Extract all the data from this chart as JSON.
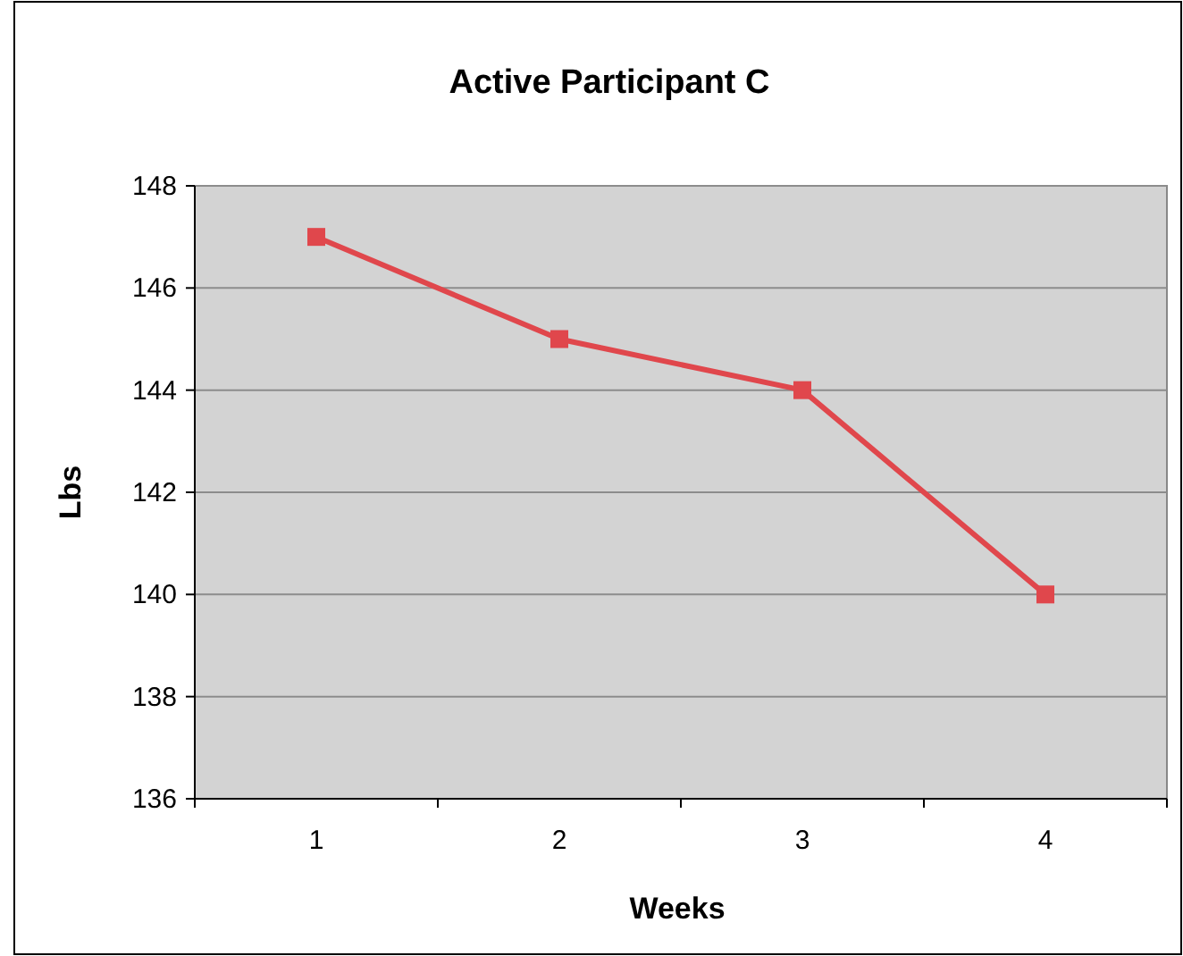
{
  "chart_data": {
    "type": "line",
    "title": "Active Participant C",
    "xlabel": "Weeks",
    "ylabel": "Lbs",
    "categories": [
      "1",
      "2",
      "3",
      "4"
    ],
    "series": [
      {
        "color": "#e0474c",
        "values": [
          147,
          145,
          144,
          140
        ]
      }
    ],
    "ylim": [
      136,
      148
    ],
    "yticks": [
      136,
      138,
      140,
      142,
      144,
      146,
      148
    ],
    "grid": "y",
    "marker": "square",
    "line_style": "solid"
  }
}
